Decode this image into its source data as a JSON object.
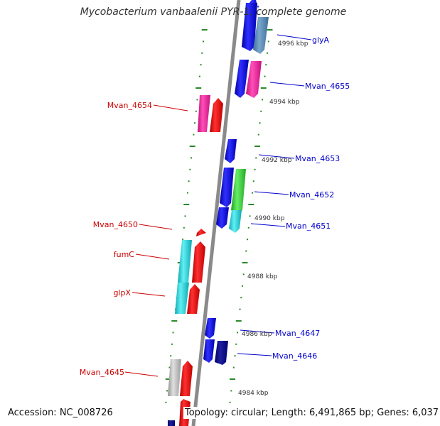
{
  "title": "Mycobacterium vanbaalenii PYR-1, complete genome",
  "footer": {
    "accession": "Accession: NC_008726",
    "summary": "Topology: circular; Length: 6,491,865 bp; Genes: 6,037"
  },
  "colors": {
    "backbone": "#8a8a8a",
    "tick": "#2a8a2a",
    "label_forward": "#0000cc",
    "label_reverse": "#cc0000",
    "kbp_text": "#333333"
  },
  "kbp_labels": [
    "4996 kbp",
    "4994 kbp",
    "4992 kbp",
    "4990 kbp",
    "4988 kbp",
    "4986 kbp",
    "4984 kbp"
  ],
  "gene_labels": {
    "forward": [
      "glyA",
      "Mvan_4655",
      "Mvan_4653",
      "Mvan_4652",
      "Mvan_4651",
      "Mvan_4647",
      "Mvan_4646"
    ],
    "reverse": [
      "Mvan_4654",
      "Mvan_4650",
      "fumC",
      "glpX",
      "Mvan_4645"
    ]
  }
}
